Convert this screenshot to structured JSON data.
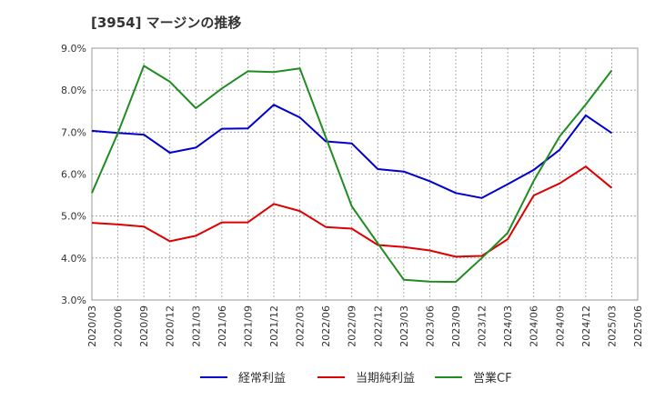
{
  "chart_data": {
    "type": "line",
    "title": "[3954]  マージンの推移",
    "x": [
      "2020/03",
      "2020/06",
      "2020/09",
      "2020/12",
      "2021/03",
      "2021/06",
      "2021/09",
      "2021/12",
      "2022/03",
      "2022/06",
      "2022/09",
      "2022/12",
      "2023/03",
      "2023/06",
      "2023/09",
      "2023/12",
      "2024/03",
      "2024/06",
      "2024/09",
      "2024/12",
      "2025/03",
      "2025/06"
    ],
    "y_ticks": [
      "3.0%",
      "4.0%",
      "5.0%",
      "6.0%",
      "7.0%",
      "8.0%",
      "9.0%"
    ],
    "ylim": [
      3.0,
      9.0
    ],
    "grid": true,
    "legend_position": "bottom",
    "series": [
      {
        "name": "経常利益",
        "color": "#0000cc",
        "values": [
          7.03,
          6.98,
          6.94,
          6.51,
          6.63,
          7.08,
          7.09,
          7.65,
          7.35,
          6.78,
          6.73,
          6.12,
          6.06,
          5.83,
          5.55,
          5.43,
          5.76,
          6.1,
          6.58,
          7.4,
          6.98,
          null
        ]
      },
      {
        "name": "当期純利益",
        "color": "#dd0000",
        "values": [
          4.84,
          4.8,
          4.75,
          4.4,
          4.53,
          4.85,
          4.85,
          5.29,
          5.12,
          4.74,
          4.7,
          4.31,
          4.26,
          4.18,
          4.03,
          4.05,
          4.45,
          5.49,
          5.78,
          6.18,
          5.67,
          null
        ]
      },
      {
        "name": "営業CF",
        "color": "#228b22",
        "values": [
          5.55,
          6.98,
          8.58,
          8.2,
          7.57,
          8.04,
          8.45,
          8.43,
          8.52,
          6.88,
          5.23,
          4.35,
          3.48,
          3.44,
          3.43,
          4.0,
          4.6,
          5.84,
          6.9,
          7.66,
          8.47,
          null
        ]
      }
    ]
  }
}
